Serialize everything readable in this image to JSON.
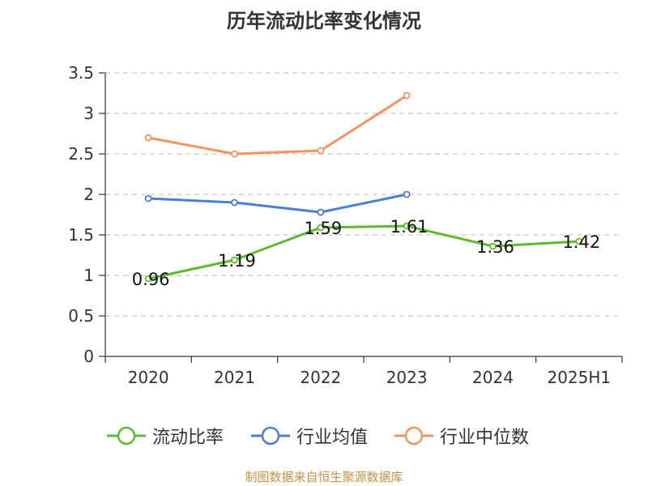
{
  "title": "历年流动比率变化情况",
  "source_note": "制图数据来自恒生聚源数据库",
  "chart_data": {
    "type": "line",
    "title": "历年流动比率变化情况",
    "categories": [
      "2020",
      "2021",
      "2022",
      "2023",
      "2024",
      "2025H1"
    ],
    "y_ticks": [
      "0",
      "0.5",
      "1",
      "1.5",
      "2",
      "2.5",
      "3",
      "3.5"
    ],
    "ylim": [
      0,
      3.5
    ],
    "grid": true,
    "legend_position": "bottom",
    "series": [
      {
        "name": "流动比率",
        "color": "#5bbd2b",
        "values": [
          0.96,
          1.19,
          1.59,
          1.61,
          1.36,
          1.42
        ],
        "labels": [
          "0.96",
          "1.19",
          "1.59",
          "1.61",
          "1.36",
          "1.42"
        ]
      },
      {
        "name": "行业均值",
        "color": "#4a7fd6",
        "values": [
          1.95,
          1.9,
          1.78,
          2.0,
          null,
          null
        ]
      },
      {
        "name": "行业中位数",
        "color": "#f5935d",
        "values": [
          2.7,
          2.5,
          2.54,
          3.22,
          null,
          null
        ]
      }
    ]
  }
}
